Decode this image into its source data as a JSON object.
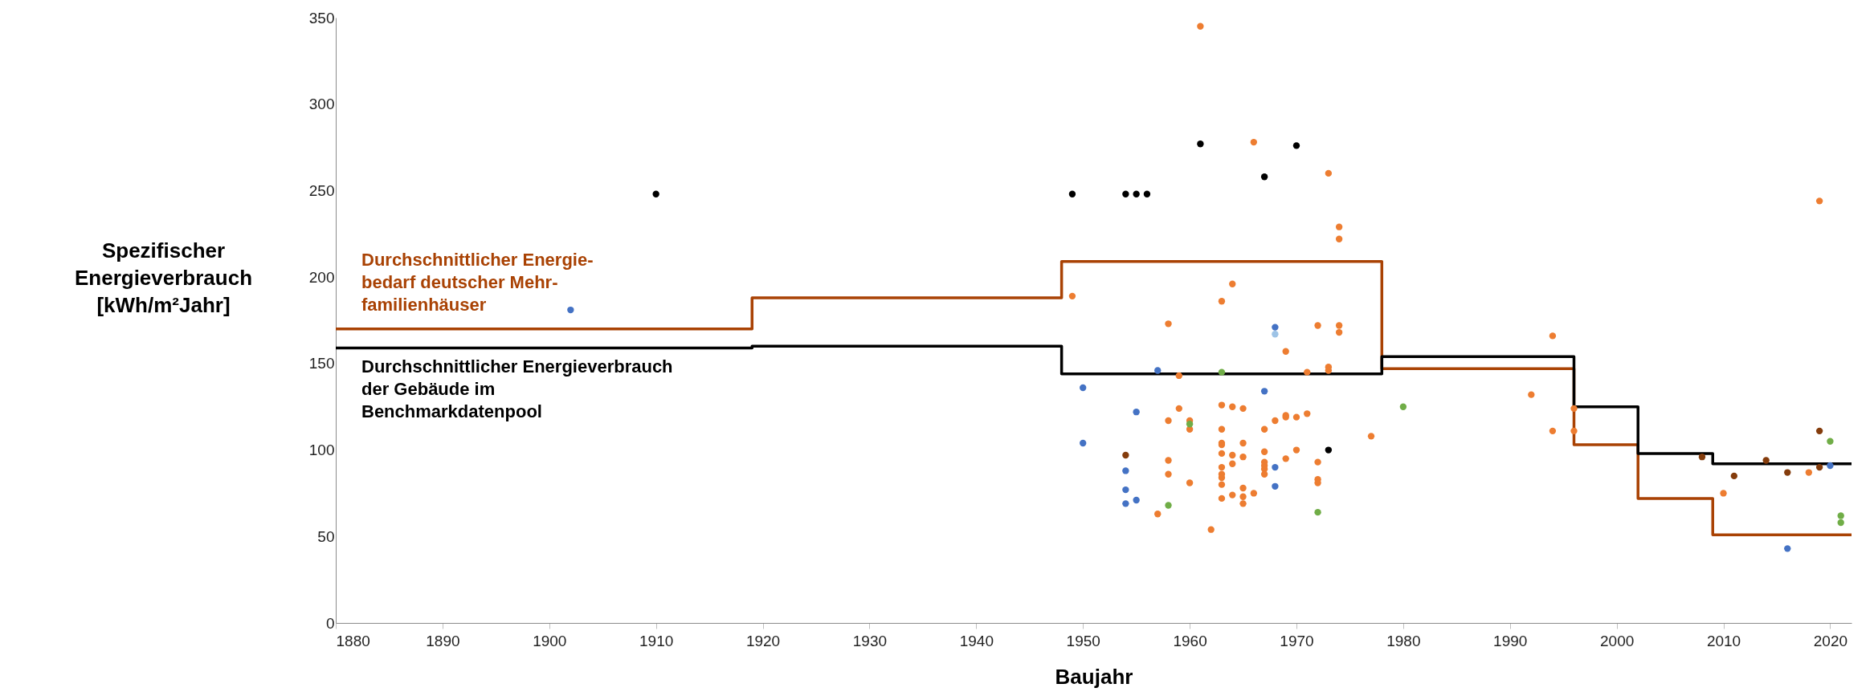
{
  "chart_data": {
    "type": "scatter",
    "xlabel": "Baujahr",
    "ylabel": "Spezifischer\nEnergieverbrauch\n[kWh/m²Jahr]",
    "xlim": [
      1880,
      2022
    ],
    "ylim": [
      0,
      350
    ],
    "xticks": [
      1880,
      1890,
      1900,
      1910,
      1920,
      1930,
      1940,
      1950,
      1960,
      1970,
      1980,
      1990,
      2000,
      2010,
      2020
    ],
    "yticks": [
      0,
      50,
      100,
      150,
      200,
      250,
      300,
      350
    ],
    "grid": false,
    "legend": false,
    "line_style": "solid",
    "series": [
      {
        "type": "step",
        "name": "Durchschnittlicher Energie-\nbedarf deutscher Mehr-\nfamilienhäuser",
        "color": "#a94204",
        "x": [
          1880,
          1919,
          1948,
          1978,
          1996,
          2002,
          2009,
          2022
        ],
        "values": [
          170,
          188,
          209,
          147,
          103,
          72,
          51,
          51
        ]
      },
      {
        "type": "step",
        "name": "Durchschnittlicher Energieverbrauch\nder Gebäude im\nBenchmarkdatenpool",
        "color": "#000000",
        "x": [
          1880,
          1919,
          1948,
          1978,
          1996,
          2002,
          2009,
          2022
        ],
        "values": [
          159,
          160,
          144,
          154,
          125,
          98,
          92,
          92
        ]
      },
      {
        "marker": "circle",
        "color": "#000000",
        "x": [
          1910,
          1949,
          1954,
          1955,
          1956,
          1961,
          1967,
          1970,
          1973
        ],
        "values": [
          248,
          248,
          248,
          248,
          248,
          277,
          258,
          276,
          100
        ]
      },
      {
        "marker": "circle",
        "color": "#ed7d31",
        "x": [
          1961,
          1966,
          1973,
          1974,
          1974,
          1949,
          1964,
          1963,
          1958,
          1972,
          1974,
          1974,
          1969,
          1959,
          1971,
          1973,
          1973,
          1959,
          1963,
          1964,
          1965,
          1958,
          1960,
          1960,
          1963,
          1967,
          1968,
          1969,
          1969,
          1970,
          1971,
          1977,
          1963,
          1963,
          1965,
          1970,
          1969,
          1963,
          1964,
          1964,
          1965,
          1967,
          1967,
          1967,
          1967,
          1967,
          1972,
          1958,
          1958,
          1963,
          1963,
          1963,
          1972,
          1972,
          1960,
          1963,
          1965,
          1966,
          1964,
          1965,
          1965,
          1963,
          1957,
          1962,
          1994,
          1992,
          1996,
          1994,
          1996,
          2018,
          2010,
          2019
        ],
        "values": [
          345,
          278,
          260,
          229,
          222,
          189,
          196,
          186,
          173,
          172,
          172,
          168,
          157,
          143,
          145,
          148,
          146,
          124,
          126,
          125,
          124,
          117,
          117,
          112,
          112,
          112,
          117,
          120,
          119,
          119,
          121,
          108,
          104,
          103,
          104,
          100,
          95,
          98,
          97,
          92,
          96,
          99,
          93,
          91,
          89,
          86,
          93,
          94,
          86,
          90,
          86,
          84,
          83,
          81,
          81,
          80,
          78,
          75,
          74,
          73,
          69,
          72,
          63,
          54,
          166,
          132,
          124,
          111,
          111,
          87,
          75,
          244
        ]
      },
      {
        "marker": "circle",
        "color": "#4472c4",
        "x": [
          1902,
          1968,
          1957,
          1950,
          1967,
          1955,
          1950,
          1968,
          1954,
          1968,
          1954,
          1954,
          1955,
          2020,
          2016
        ],
        "values": [
          181,
          171,
          146,
          136,
          134,
          122,
          104,
          90,
          88,
          79,
          77,
          69,
          71,
          91,
          43
        ]
      },
      {
        "marker": "circle",
        "color": "#9dc3e6",
        "x": [
          1968
        ],
        "values": [
          167
        ]
      },
      {
        "marker": "circle",
        "color": "#70ad47",
        "x": [
          1963,
          1980,
          1960,
          1958,
          1972,
          2020,
          2021,
          2021
        ],
        "values": [
          145,
          125,
          115,
          68,
          64,
          105,
          62,
          58
        ]
      },
      {
        "marker": "circle",
        "color": "#843c0c",
        "x": [
          1954,
          2019,
          2008,
          2014,
          2019,
          2011,
          2016
        ],
        "values": [
          97,
          111,
          96,
          94,
          90,
          85,
          87
        ]
      }
    ]
  }
}
